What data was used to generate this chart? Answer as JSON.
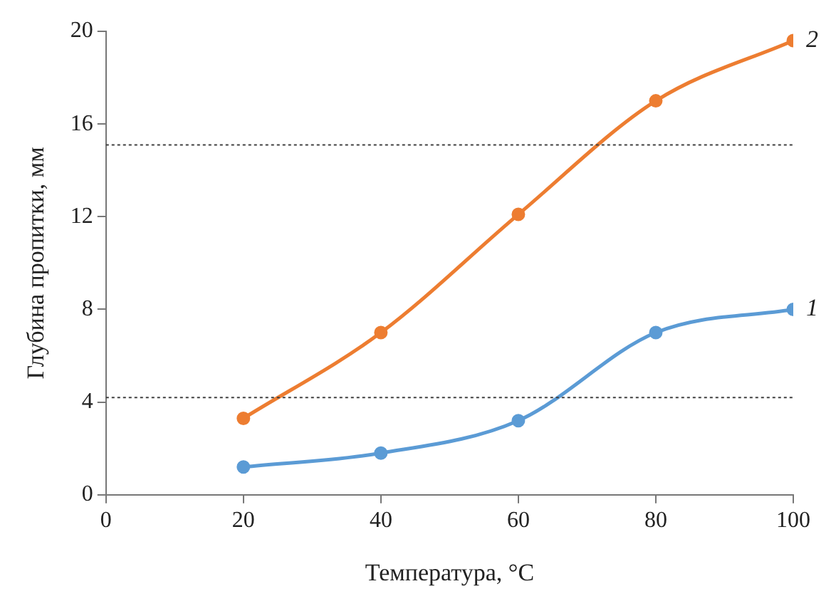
{
  "chart_data": {
    "type": "line",
    "xlabel": "Температура, °C",
    "ylabel": "Глубина пропитки, мм",
    "xlim": [
      0,
      100
    ],
    "xticks": [
      0,
      20,
      40,
      60,
      80,
      100
    ],
    "ylim": [
      0,
      20
    ],
    "yticks": [
      0,
      4,
      8,
      12,
      16,
      20
    ],
    "grid": false,
    "legend": false,
    "marker": "circle",
    "ref_lines": [
      {
        "axis": "y",
        "value": 15.1,
        "color": "#404040",
        "line_style": "dotted"
      },
      {
        "axis": "y",
        "value": 4.2,
        "color": "#404040",
        "line_style": "dotted"
      }
    ],
    "series": [
      {
        "name": "1",
        "color": "#5b9bd5",
        "x": [
          20,
          40,
          60,
          80,
          100
        ],
        "values": [
          1.2,
          1.8,
          3.2,
          7.0,
          8.0
        ]
      },
      {
        "name": "2",
        "color": "#ed7d31",
        "x": [
          20,
          40,
          60,
          80,
          100
        ],
        "values": [
          3.3,
          7.0,
          12.1,
          17.0,
          19.6
        ]
      }
    ]
  }
}
